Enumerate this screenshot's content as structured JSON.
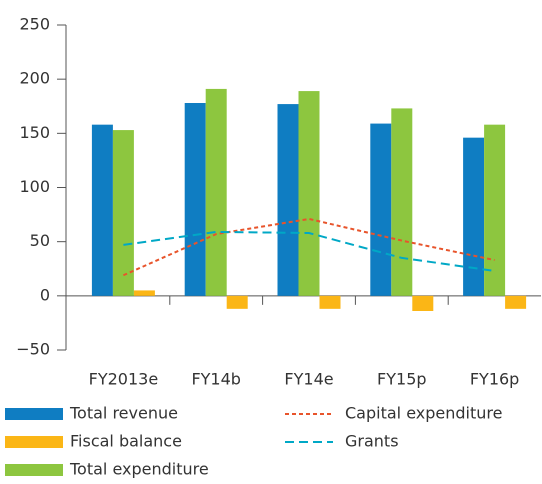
{
  "chart_data": {
    "type": "bar",
    "categories": [
      "FY2013e",
      "FY14b",
      "FY14e",
      "FY15p",
      "FY16p"
    ],
    "series": [
      {
        "name": "Total revenue",
        "type": "bar",
        "color": "#0f7dc2",
        "values": [
          158,
          178,
          177,
          159,
          146
        ]
      },
      {
        "name": "Fiscal balance",
        "type": "bar",
        "color": "#fbb616",
        "values": [
          5,
          -12,
          -12,
          -14,
          -12
        ]
      },
      {
        "name": "Total expenditure",
        "type": "bar",
        "color": "#8dc63f",
        "values": [
          153,
          191,
          189,
          173,
          158
        ]
      },
      {
        "name": "Capital expenditure",
        "type": "line",
        "dash": "short-dash",
        "color": "#e8542b",
        "values": [
          19,
          57,
          71,
          51,
          33
        ]
      },
      {
        "name": "Grants",
        "type": "line",
        "dash": "long-dash",
        "color": "#00a8c6",
        "values": [
          47,
          59,
          58,
          35,
          23
        ]
      }
    ],
    "ylim": [
      -50,
      250
    ],
    "yticks": [
      {
        "value": -50,
        "label": "−50"
      },
      0,
      50,
      100,
      150,
      200,
      250
    ],
    "grid": false
  }
}
